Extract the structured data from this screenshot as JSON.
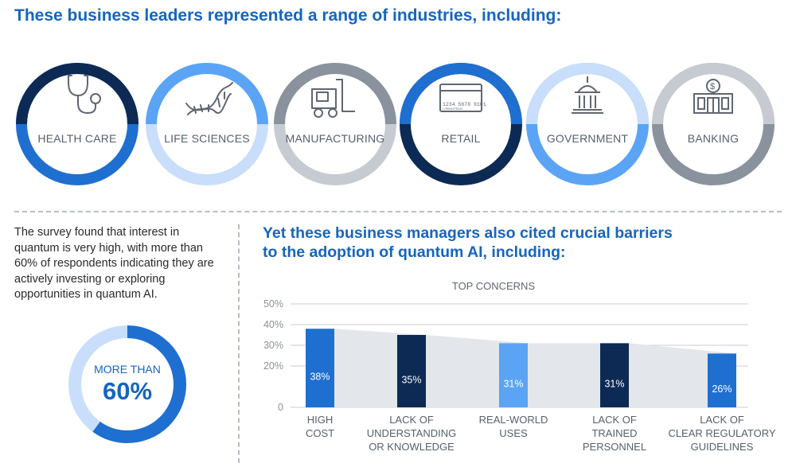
{
  "heading": "These business leaders represented a range of industries, including:",
  "industries": [
    {
      "label": "HEALTH CARE",
      "icon": "stethoscope-icon"
    },
    {
      "label": "LIFE SCIENCES",
      "icon": "dna-icon"
    },
    {
      "label": "MANUFACTURING",
      "icon": "forklift-icon"
    },
    {
      "label": "RETAIL",
      "icon": "credit-card-icon"
    },
    {
      "label": "GOVERNMENT",
      "icon": "capitol-building-icon"
    },
    {
      "label": "BANKING",
      "icon": "bank-icon"
    }
  ],
  "card_number": "1234 5678 9101",
  "card_small": "LOREM IPSUM",
  "survey_text": "The survey found that interest in quantum is very high, with more than 60% of respondents indicating they are actively investing or exploring opportunities in quantum AI.",
  "donut": {
    "top_text": "MORE THAN",
    "big_text": "60%",
    "fraction": 0.6
  },
  "barriers_line1": "Yet these business managers also cited crucial barriers",
  "barriers_line2": "to the adoption of quantum AI, including:",
  "colors": {
    "navy": "#0d2a54",
    "blue": "#1f6fd1",
    "light_blue": "#5ba4f5",
    "pale_blue": "#c8defa",
    "gray": "#8a929d",
    "light_gray": "#c6cbd2"
  },
  "chart_data": {
    "type": "bar",
    "title": "TOP CONCERNS",
    "categories": [
      [
        "HIGH",
        "COST"
      ],
      [
        "LACK OF",
        "UNDERSTANDING",
        "OR KNOWLEDGE"
      ],
      [
        "REAL-WORLD",
        "USES"
      ],
      [
        "LACK OF",
        "TRAINED",
        "PERSONNEL"
      ],
      [
        "LACK OF",
        "CLEAR REGULATORY",
        "GUIDELINES"
      ]
    ],
    "values": [
      38,
      35,
      31,
      31,
      26
    ],
    "value_labels": [
      "38%",
      "35%",
      "31%",
      "31%",
      "26%"
    ],
    "bar_colors": [
      "#1f6fd1",
      "#0d2a54",
      "#5ba4f5",
      "#0d2a54",
      "#1f6fd1"
    ],
    "ylim": [
      0,
      50
    ],
    "yticks": [
      0,
      20,
      30,
      40,
      50
    ],
    "ytick_labels": [
      "0",
      "20%",
      "30%",
      "40%",
      "50%"
    ],
    "grid": true
  }
}
